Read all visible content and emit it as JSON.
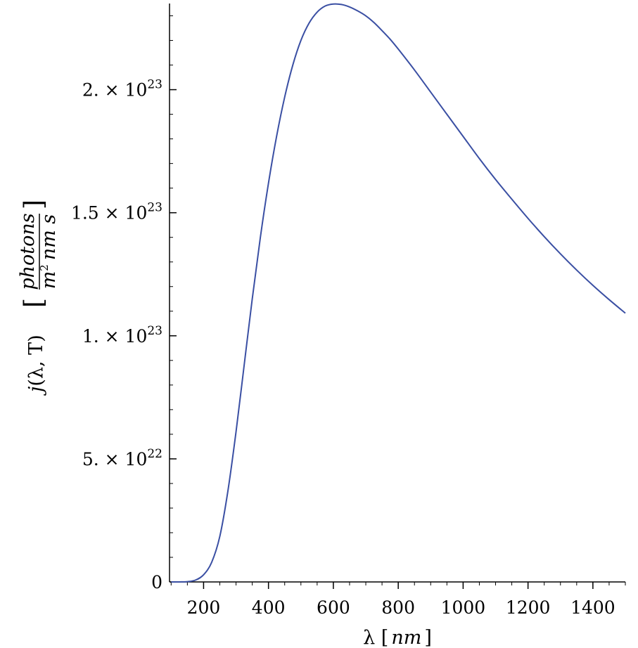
{
  "chart_data": {
    "type": "line",
    "title": "",
    "xlabel": {
      "prefix": "λ [",
      "unit": "nm",
      "suffix": "]"
    },
    "ylabel": {
      "func": "j",
      "args": "(λ, T)",
      "bracket_open": "[",
      "bracket_close": "]",
      "numerator": "photons",
      "denominator_base": "m",
      "denominator_exp": "2",
      "denominator_rest": "nm s"
    },
    "xlim": [
      95,
      1500
    ],
    "ylim": [
      0,
      2.35e+23
    ],
    "x_ticks": [
      {
        "value": 200,
        "label": "200"
      },
      {
        "value": 400,
        "label": "400"
      },
      {
        "value": 600,
        "label": "600"
      },
      {
        "value": 800,
        "label": "800"
      },
      {
        "value": 1000,
        "label": "1000"
      },
      {
        "value": 1200,
        "label": "1200"
      },
      {
        "value": 1400,
        "label": "1400"
      }
    ],
    "x_minor_step": 50,
    "y_ticks": [
      {
        "value": 0,
        "mantissa": "0",
        "exp": ""
      },
      {
        "value": 5e+22,
        "mantissa": "5. × 10",
        "exp": "22"
      },
      {
        "value": 1e+23,
        "mantissa": "1. × 10",
        "exp": "23"
      },
      {
        "value": 1.5e+23,
        "mantissa": "1.5 × 10",
        "exp": "23"
      },
      {
        "value": 2e+23,
        "mantissa": "2. × 10",
        "exp": "23"
      }
    ],
    "y_minor_step": 1e+22,
    "grid": false,
    "series": [
      {
        "color": "#3a4fa3",
        "x": [
          100,
          125,
          150,
          175,
          200,
          225,
          250,
          275,
          300,
          325,
          350,
          375,
          400,
          425,
          450,
          475,
          500,
          525,
          550,
          575,
          600,
          625,
          650,
          675,
          700,
          725,
          750,
          775,
          800,
          850,
          900,
          950,
          1000,
          1050,
          1100,
          1150,
          1200,
          1250,
          1300,
          1350,
          1400,
          1450,
          1500
        ],
        "y": [
          0,
          1e+19,
          1.2e+20,
          7.5e+20,
          2.9e+21,
          8e+21,
          1.85e+22,
          3.7e+22,
          6.1e+22,
          8.8e+22,
          1.15e+23,
          1.4e+23,
          1.62e+23,
          1.81e+23,
          1.97e+23,
          2.1e+23,
          2.2e+23,
          2.27e+23,
          2.315e+23,
          2.34e+23,
          2.348e+23,
          2.346e+23,
          2.336e+23,
          2.32e+23,
          2.3e+23,
          2.273e+23,
          2.24e+23,
          2.205e+23,
          2.165e+23,
          2.08e+23,
          1.99e+23,
          1.9e+23,
          1.81e+23,
          1.72e+23,
          1.635e+23,
          1.555e+23,
          1.477e+23,
          1.403e+23,
          1.333e+23,
          1.267e+23,
          1.205e+23,
          1.147e+23,
          1.092e+23
        ]
      }
    ]
  }
}
